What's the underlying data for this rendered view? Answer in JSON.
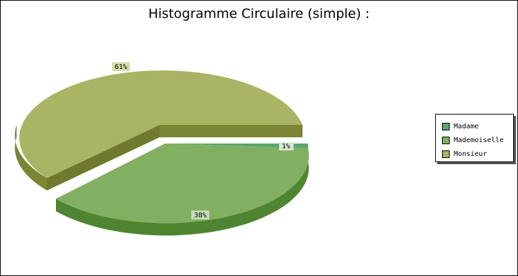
{
  "chart_data": {
    "type": "pie",
    "title": "Histogramme Circulaire (simple) :",
    "categories": [
      "Madame",
      "Mademoiselle",
      "Monsieur"
    ],
    "values": [
      1,
      38,
      61
    ],
    "value_labels": [
      "1%",
      "38%",
      "61%"
    ],
    "colors": {
      "Madame": "#5aa66e",
      "Mademoiselle": "#82b062",
      "Monsieur": "#a9b465"
    },
    "legend_placement": "right",
    "style": "3d-exploded"
  }
}
